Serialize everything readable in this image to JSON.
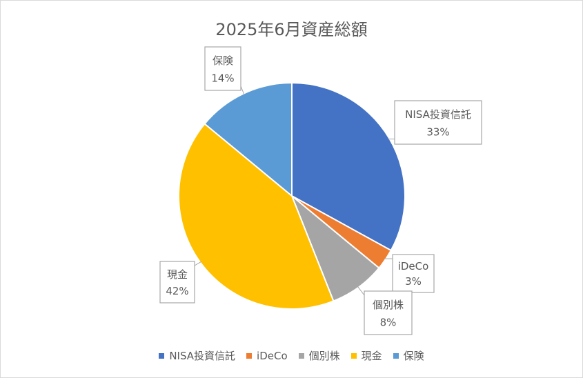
{
  "chart_data": {
    "type": "pie",
    "title": "2025年6月資産総額",
    "categories": [
      "NISA投資信託",
      "iDeCo",
      "個別株",
      "現金",
      "保険"
    ],
    "values": [
      33,
      3,
      8,
      42,
      14
    ],
    "data_labels": [
      "33%",
      "3%",
      "8%",
      "42%",
      "14%"
    ],
    "colors": [
      "#4472c4",
      "#ed7d31",
      "#a5a5a5",
      "#ffc000",
      "#5b9bd5"
    ],
    "legend_position": "bottom",
    "start_angle_deg": 0,
    "direction": "clockwise"
  }
}
